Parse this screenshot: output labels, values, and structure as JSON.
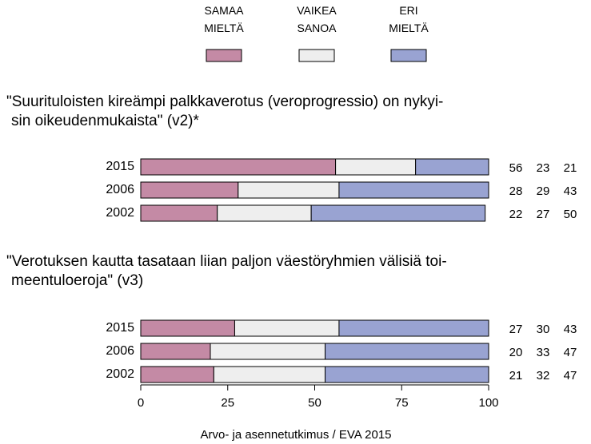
{
  "chart_data": {
    "type": "stacked-barh",
    "series": [
      {
        "name": "SAMAA MIELTÄ",
        "color": "#c48aa5"
      },
      {
        "name": "VAIKEA SANOA",
        "color": "#eeeeee"
      },
      {
        "name": "ERI MIELTÄ",
        "color": "#99a3d2"
      }
    ],
    "panels": [
      {
        "title": [
          "\"Suurituloisten kireämpi palkkaverotus (veroprogressio) on nykyi-",
          "sin oikeudenmukaista\" (v2)*"
        ],
        "categories": [
          "2015",
          "2006",
          "2002"
        ],
        "values": [
          [
            56,
            23,
            21
          ],
          [
            28,
            29,
            43
          ],
          [
            22,
            27,
            50
          ]
        ]
      },
      {
        "title": [
          "\"Verotuksen kautta tasataan liian paljon väestöryhmien välisiä toi-",
          "meentuloeroja\" (v3)"
        ],
        "categories": [
          "2015",
          "2006",
          "2002"
        ],
        "values": [
          [
            27,
            30,
            43
          ],
          [
            20,
            33,
            47
          ],
          [
            21,
            32,
            47
          ]
        ]
      }
    ],
    "xlim": [
      0,
      100
    ],
    "xticks": [
      0,
      25,
      50,
      75,
      100
    ],
    "source": "Arvo- ja asennetutkimus / EVA 2015"
  }
}
